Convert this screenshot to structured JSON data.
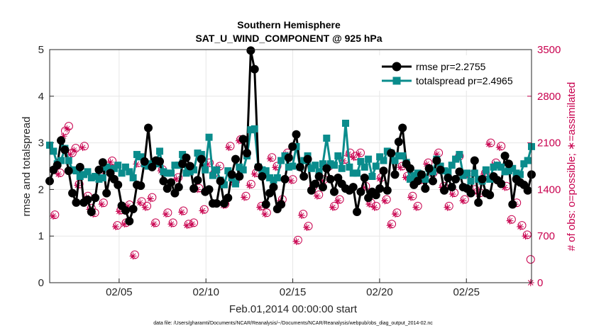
{
  "chart_data": {
    "type": "line",
    "title": "Southern Hemisphere",
    "subtitle": "SAT_U_WIND_COMPONENT @ 925 hPa",
    "xlabel": "Feb.01,2014 00:00:00 start",
    "ylabel": "rmse and totalspread",
    "ylabel_right": "# of obs: o=possible; ∗=assimilated",
    "footnote": "data file: /Users/gharamti/Documents/NCAR/Reanalysis/~/Documents/NCAR/Reanalysis/webpub/obs_diag_output_2014-02.nc",
    "xlim": [
      1.0,
      28.75
    ],
    "x_ticks": [
      5,
      10,
      15,
      20,
      25
    ],
    "x_tick_labels": [
      "02/05",
      "02/10",
      "02/15",
      "02/20",
      "02/25"
    ],
    "ylim": [
      0,
      5
    ],
    "y_ticks": [
      0,
      1,
      2,
      3,
      4,
      5
    ],
    "ylim_right": [
      0,
      3500
    ],
    "y_ticks_right": [
      0,
      700,
      1400,
      2100,
      2800,
      3500
    ],
    "grid": true,
    "legend_position": "top-right",
    "colors": {
      "rmse": "#000000",
      "totalspread": "#0a8c8c",
      "obs": "#c8004e",
      "grid": "#e6e6e6",
      "axis": "#262626"
    },
    "series": [
      {
        "name": "rmse",
        "legend": "rmse pr=2.2755",
        "axis": "left",
        "values": [
          2.18,
          2.42,
          2.52,
          3.05,
          2.85,
          2.4,
          1.92,
          1.72,
          2.48,
          1.72,
          1.78,
          1.52,
          1.82,
          2.42,
          2.58,
          1.92,
          2.35,
          2.22,
          2.1,
          1.65,
          1.55,
          1.32,
          1.58,
          2.1,
          2.08,
          2.6,
          3.32,
          2.48,
          2.62,
          2.6,
          2.18,
          2.02,
          2.15,
          1.92,
          2.05,
          2.55,
          2.68,
          2.5,
          2.02,
          2.2,
          2.65,
          1.95,
          2.0,
          1.7,
          1.7,
          2.18,
          1.7,
          1.82,
          2.32,
          2.65,
          2.28,
          3.08,
          2.78,
          4.98,
          4.58,
          2.48,
          2.28,
          1.68,
          1.92,
          2.05,
          1.58,
          1.68,
          2.22,
          2.68,
          2.92,
          3.18,
          2.48,
          2.28,
          2.65,
          1.98,
          2.12,
          2.28,
          2.05,
          2.45,
          2.22,
          1.95,
          2.25,
          2.12,
          2.02,
          1.98,
          2.05,
          1.52,
          1.95,
          2.25,
          1.82,
          1.95,
          1.88,
          2.02,
          2.4,
          1.98,
          2.78,
          2.32,
          3.02,
          3.32,
          2.55,
          2.45,
          2.1,
          2.18,
          2.32,
          2.02,
          2.45,
          2.18,
          2.62,
          2.42,
          1.98,
          2.25,
          2.05,
          2.22,
          2.38,
          2.05,
          2.02,
          1.92,
          2.62,
          1.72,
          2.22,
          1.92,
          1.88,
          2.28,
          2.2,
          2.12,
          2.72,
          2.55,
          1.68,
          2.22,
          2.15,
          2.1,
          1.98,
          2.32
        ]
      },
      {
        "name": "totalspread",
        "legend": "totalspread pr=2.4965",
        "axis": "left",
        "values": [
          2.95,
          2.82,
          2.55,
          2.62,
          2.88,
          2.62,
          2.42,
          2.4,
          2.28,
          2.32,
          2.38,
          2.25,
          2.28,
          2.22,
          2.25,
          2.48,
          2.42,
          2.45,
          2.52,
          2.35,
          2.48,
          2.38,
          2.25,
          2.75,
          2.7,
          2.55,
          2.5,
          2.55,
          2.55,
          2.82,
          2.38,
          2.35,
          2.35,
          2.52,
          2.52,
          2.75,
          2.35,
          2.38,
          2.42,
          2.78,
          2.75,
          2.42,
          3.12,
          2.3,
          2.42,
          2.2,
          2.1,
          2.4,
          2.25,
          2.12,
          2.48,
          2.42,
          2.72,
          3.28,
          3.3,
          2.48,
          2.42,
          2.4,
          2.25,
          2.2,
          2.25,
          2.62,
          2.72,
          2.48,
          2.5,
          2.92,
          2.48,
          2.62,
          2.72,
          2.45,
          2.52,
          2.38,
          2.55,
          3.1,
          2.55,
          2.52,
          2.72,
          2.45,
          3.42,
          2.48,
          2.35,
          2.35,
          2.6,
          2.48,
          2.65,
          2.28,
          2.5,
          2.7,
          2.62,
          2.82,
          2.78,
          2.62,
          2.72,
          2.72,
          2.58,
          2.22,
          2.3,
          2.35,
          2.32,
          2.22,
          2.45,
          2.38,
          2.65,
          2.5,
          2.4,
          2.38,
          2.52,
          2.65,
          2.75,
          2.3,
          2.35,
          2.18,
          2.35,
          2.22,
          2.18,
          2.42,
          2.22,
          2.48,
          2.52,
          2.48,
          2.38,
          2.4,
          2.45,
          2.35,
          2.32,
          2.55,
          2.62,
          2.92
        ]
      },
      {
        "name": "possible_obs",
        "axis": "right",
        "marker": "circle",
        "x": [
          1.3,
          1.6,
          1.9,
          2.1,
          2.3,
          2.5,
          2.7,
          3.0,
          3.2,
          3.4,
          3.6,
          3.9,
          4.1,
          4.3,
          4.6,
          4.9,
          5.1,
          5.4,
          5.6,
          5.9,
          6.1,
          6.3,
          6.6,
          6.9,
          7.1,
          7.5,
          7.8,
          8.1,
          8.4,
          8.7,
          9.0,
          9.3,
          9.6,
          9.9,
          10.2,
          10.5,
          10.8,
          11.1,
          11.4,
          11.7,
          12.0,
          12.3,
          12.6,
          12.9,
          13.2,
          13.5,
          13.8,
          14.1,
          14.4,
          14.7,
          15.0,
          15.3,
          15.6,
          15.9,
          16.2,
          16.5,
          16.8,
          17.1,
          17.4,
          17.7,
          18.0,
          18.3,
          18.6,
          18.9,
          19.2,
          19.5,
          19.8,
          20.1,
          20.4,
          20.7,
          21.0,
          21.3,
          21.6,
          21.9,
          22.2,
          22.5,
          22.8,
          23.1,
          23.4,
          23.7,
          24.0,
          24.3,
          24.6,
          24.9,
          25.2,
          25.5,
          25.8,
          26.1,
          26.4,
          26.7,
          27.0,
          27.3,
          27.6,
          27.9,
          28.2,
          28.5,
          28.7
        ],
        "values": [
          1020,
          1650,
          2280,
          2350,
          1950,
          2020,
          1480,
          2050,
          1300,
          1120,
          1050,
          1600,
          1200,
          1720,
          1830,
          860,
          1090,
          900,
          1170,
          420,
          1800,
          1220,
          1150,
          1280,
          900,
          1700,
          1050,
          900,
          1580,
          1080,
          880,
          900,
          1420,
          1100,
          1800,
          1650,
          1750,
          1180,
          2050,
          1520,
          2150,
          1300,
          1480,
          1650,
          1150,
          1050,
          1880,
          1750,
          1250,
          1950,
          1550,
          640,
          1030,
          850,
          1450,
          1320,
          1550,
          1750,
          1150,
          1250,
          1850,
          1950,
          1900,
          1950,
          1450,
          1200,
          1150,
          1580,
          1250,
          880,
          1050,
          1750,
          1600,
          1300,
          1150,
          1550,
          1800,
          1650,
          1950,
          1450,
          1150,
          1350,
          1900,
          1250,
          1620,
          1400,
          1350,
          1650,
          2100,
          1800,
          2050,
          1450,
          950,
          1200,
          860,
          720,
          350
        ]
      },
      {
        "name": "assimilated_obs",
        "axis": "right",
        "marker": "asterisk",
        "x": [
          1.2,
          1.5,
          1.8,
          2.0,
          2.2,
          2.4,
          2.6,
          2.9,
          3.1,
          3.3,
          3.5,
          3.8,
          4.0,
          4.2,
          4.5,
          4.8,
          5.0,
          5.3,
          5.5,
          5.8,
          6.0,
          6.2,
          6.5,
          6.8,
          7.0,
          7.4,
          7.7,
          8.0,
          8.3,
          8.6,
          8.9,
          9.2,
          9.5,
          9.8,
          10.1,
          10.4,
          10.7,
          11.0,
          11.3,
          11.6,
          11.9,
          12.2,
          12.5,
          12.8,
          13.1,
          13.4,
          13.7,
          14.0,
          14.3,
          14.6,
          14.9,
          15.2,
          15.5,
          15.8,
          16.1,
          16.4,
          16.7,
          17.0,
          17.3,
          17.6,
          17.9,
          18.2,
          18.5,
          18.8,
          19.1,
          19.4,
          19.7,
          20.0,
          20.3,
          20.6,
          20.9,
          21.2,
          21.5,
          21.8,
          22.1,
          22.4,
          22.7,
          23.0,
          23.3,
          23.6,
          23.9,
          24.2,
          24.5,
          24.8,
          25.1,
          25.4,
          25.7,
          26.0,
          26.3,
          26.6,
          26.9,
          27.2,
          27.5,
          27.8,
          28.1,
          28.4,
          28.7
        ],
        "values": [
          1000,
          1630,
          2200,
          2310,
          1930,
          1990,
          1460,
          2030,
          1280,
          1100,
          1030,
          1580,
          1180,
          1700,
          1810,
          840,
          1070,
          880,
          1150,
          400,
          1780,
          1200,
          1130,
          1260,
          880,
          1680,
          1030,
          880,
          1560,
          1060,
          860,
          880,
          1400,
          1080,
          1780,
          1630,
          1730,
          1160,
          2030,
          1500,
          2130,
          1280,
          1460,
          1630,
          1130,
          1030,
          1860,
          1730,
          1230,
          1930,
          1530,
          620,
          1010,
          830,
          1430,
          1300,
          1530,
          1730,
          1130,
          1230,
          1830,
          1930,
          1880,
          1930,
          1430,
          1180,
          1130,
          1560,
          1230,
          860,
          1030,
          1730,
          1580,
          1280,
          1130,
          1530,
          1780,
          1630,
          1930,
          1430,
          1130,
          1330,
          1880,
          1230,
          1600,
          1380,
          1330,
          1630,
          2080,
          1780,
          2030,
          1430,
          930,
          1180,
          840,
          700,
          0
        ]
      }
    ]
  }
}
